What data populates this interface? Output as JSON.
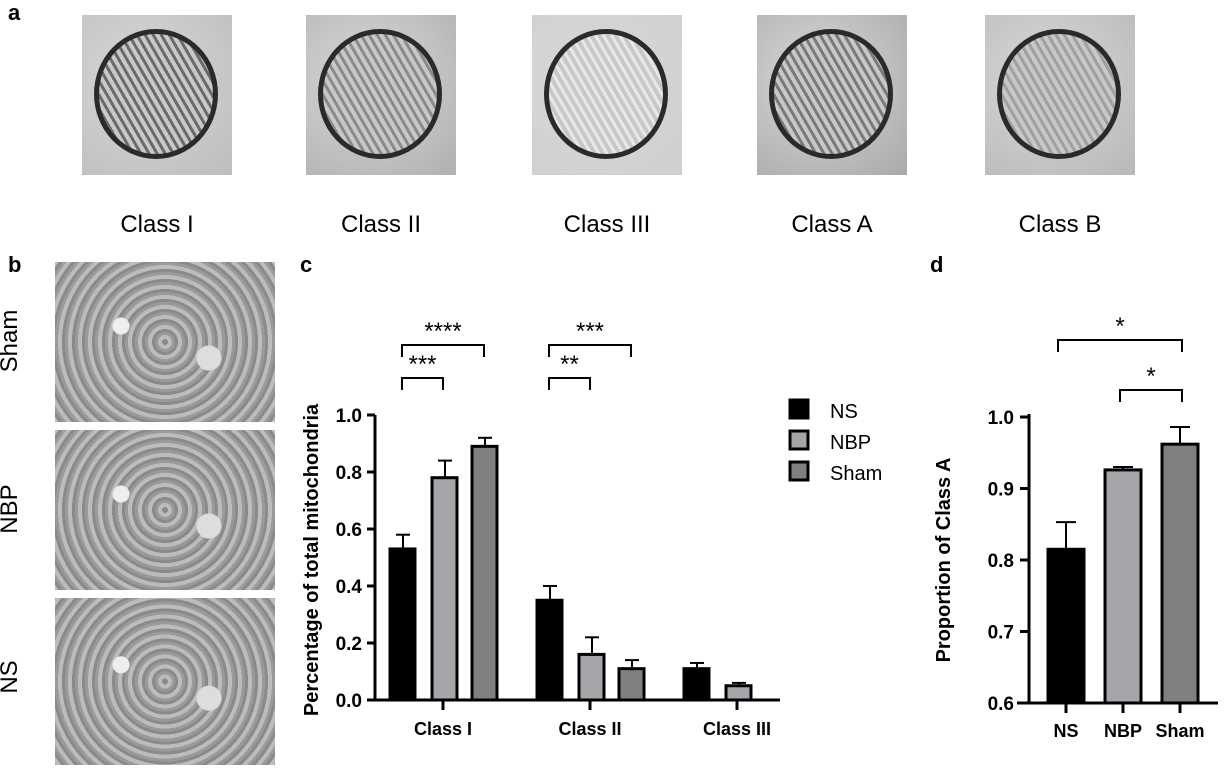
{
  "panels": {
    "a": "a",
    "b": "b",
    "c": "c",
    "d": "d"
  },
  "panel_a": {
    "images": [
      "Class I",
      "Class II",
      "Class III",
      "Class A",
      "Class B"
    ]
  },
  "panel_b": {
    "images": [
      "Sham",
      "NBP",
      "NS"
    ]
  },
  "colors": {
    "NS": "#000000",
    "NBP": "#a6a6aa",
    "Sham": "#808080"
  },
  "chart_data": [
    {
      "type": "bar",
      "panel": "c",
      "ylabel": "Percentage of total mitochondria",
      "ylim": [
        0,
        1.0
      ],
      "yticks": [
        "0.0",
        "0.2",
        "0.4",
        "0.6",
        "0.8",
        "1.0"
      ],
      "categories": [
        "Class I",
        "Class II",
        "Class III"
      ],
      "legend_position": "right",
      "series": [
        {
          "name": "NS",
          "values": [
            0.53,
            0.35,
            0.11
          ],
          "errors": [
            0.05,
            0.05,
            0.02
          ]
        },
        {
          "name": "NBP",
          "values": [
            0.78,
            0.16,
            0.05
          ],
          "errors": [
            0.06,
            0.06,
            0.01
          ]
        },
        {
          "name": "Sham",
          "values": [
            0.89,
            0.11,
            0.0
          ],
          "errors": [
            0.03,
            0.03,
            0.0
          ]
        }
      ],
      "significance": [
        {
          "category": "Class I",
          "pair": [
            "NS",
            "Sham"
          ],
          "label": "****"
        },
        {
          "category": "Class I",
          "pair": [
            "NS",
            "NBP"
          ],
          "label": "***"
        },
        {
          "category": "Class II",
          "pair": [
            "NS",
            "Sham"
          ],
          "label": "***"
        },
        {
          "category": "Class II",
          "pair": [
            "NS",
            "NBP"
          ],
          "label": "**"
        }
      ]
    },
    {
      "type": "bar",
      "panel": "d",
      "ylabel": "Proportion of Class A",
      "ylim": [
        0.6,
        1.0
      ],
      "yticks": [
        "0.6",
        "0.7",
        "0.8",
        "0.9",
        "1.0"
      ],
      "categories": [
        "NS",
        "NBP",
        "Sham"
      ],
      "values": [
        0.815,
        0.926,
        0.962
      ],
      "errors": [
        0.038,
        0.004,
        0.024
      ],
      "significance": [
        {
          "pair": [
            "NS",
            "Sham"
          ],
          "label": "*"
        },
        {
          "pair": [
            "NBP",
            "Sham"
          ],
          "label": "*"
        }
      ]
    }
  ]
}
